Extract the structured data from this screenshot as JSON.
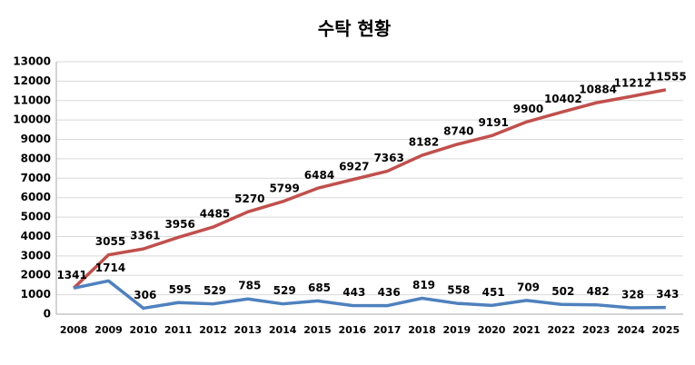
{
  "chart_data": {
    "type": "line",
    "title": "수탁 현황",
    "categories": [
      "2008",
      "2009",
      "2010",
      "2011",
      "2012",
      "2013",
      "2014",
      "2015",
      "2016",
      "2017",
      "2018",
      "2019",
      "2020",
      "2021",
      "2022",
      "2023",
      "2024",
      "2025"
    ],
    "series": [
      {
        "color": "#c0504d",
        "values": [
          1341,
          3055,
          3361,
          3956,
          4485,
          5270,
          5799,
          6484,
          6927,
          7363,
          8182,
          8740,
          9191,
          9900,
          10402,
          10884,
          11212,
          11555
        ]
      },
      {
        "color": "#4f81bd",
        "values": [
          1341,
          1714,
          306,
          595,
          529,
          785,
          529,
          685,
          443,
          436,
          819,
          558,
          451,
          709,
          502,
          482,
          328,
          343
        ]
      }
    ],
    "ylim": [
      0,
      13000
    ],
    "yticks": [
      0,
      1000,
      2000,
      3000,
      4000,
      5000,
      6000,
      7000,
      8000,
      9000,
      10000,
      11000,
      12000,
      13000
    ],
    "grid": true
  }
}
